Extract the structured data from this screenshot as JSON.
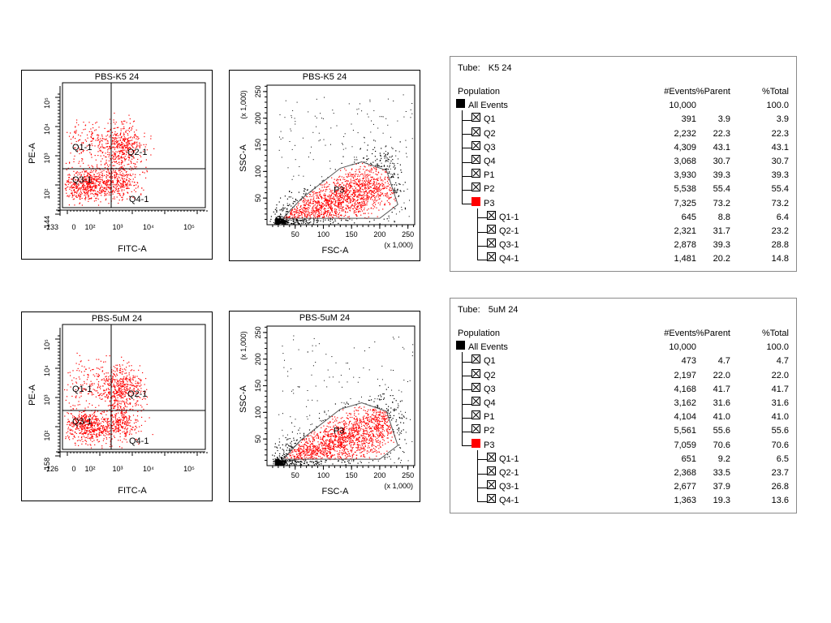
{
  "chart_data": [
    {
      "type": "scatter",
      "title": "PBS-K5 24",
      "xlabel": "FITC-A",
      "ylabel": "PE-A",
      "x_ticks": [
        "-133",
        "0",
        "10²",
        "10³",
        "10⁴",
        "10⁵"
      ],
      "y_ticks": [
        "-144",
        "10²",
        "10³",
        "10⁴",
        "10⁵"
      ],
      "gates": [
        "Q1-1",
        "Q2-1",
        "Q3-1",
        "Q4-1"
      ],
      "colors": {
        "points": "#ff0000"
      }
    },
    {
      "type": "scatter",
      "title": "PBS-K5 24",
      "xlabel": "FSC-A",
      "ylabel": "SSC-A",
      "x_unit": "(x 1,000)",
      "y_unit": "(x 1,000)",
      "x_ticks": [
        "50",
        "100",
        "150",
        "200",
        "250"
      ],
      "y_ticks": [
        "50",
        "100",
        "150",
        "200",
        "250"
      ],
      "xlim": [
        0,
        262
      ],
      "ylim": [
        0,
        262
      ],
      "gates": [
        "P3"
      ],
      "colors": {
        "in_gate": "#ff0000",
        "outside": "#000000"
      }
    },
    {
      "type": "scatter",
      "title": "PBS-5uM 24",
      "xlabel": "FITC-A",
      "ylabel": "PE-A",
      "x_ticks": [
        "-126",
        "0",
        "10²",
        "10³",
        "10⁴",
        "10⁵"
      ],
      "y_ticks": [
        "-158",
        "10²",
        "10³",
        "10⁴",
        "10⁵"
      ],
      "gates": [
        "Q1-1",
        "Q2-1",
        "Q3-1",
        "Q4-1"
      ],
      "colors": {
        "points": "#ff0000"
      }
    },
    {
      "type": "scatter",
      "title": "PBS-5uM 24",
      "xlabel": "FSC-A",
      "ylabel": "SSC-A",
      "x_unit": "(x 1,000)",
      "y_unit": "(x 1,000)",
      "x_ticks": [
        "50",
        "100",
        "150",
        "200",
        "250"
      ],
      "y_ticks": [
        "50",
        "100",
        "150",
        "200",
        "250"
      ],
      "xlim": [
        0,
        262
      ],
      "ylim": [
        0,
        262
      ],
      "gates": [
        "P3"
      ],
      "colors": {
        "in_gate": "#ff0000",
        "outside": "#000000"
      }
    },
    {
      "type": "table",
      "tube_label": "Tube:",
      "tube": "K5 24",
      "columns": [
        "Population",
        "#Events",
        "%Parent",
        "%Total"
      ],
      "rows": [
        {
          "name": "All Events",
          "events": "10,000",
          "parent": "",
          "total": "100.0"
        },
        {
          "name": "Q1",
          "events": "391",
          "parent": "3.9",
          "total": "3.9"
        },
        {
          "name": "Q2",
          "events": "2,232",
          "parent": "22.3",
          "total": "22.3"
        },
        {
          "name": "Q3",
          "events": "4,309",
          "parent": "43.1",
          "total": "43.1"
        },
        {
          "name": "Q4",
          "events": "3,068",
          "parent": "30.7",
          "total": "30.7"
        },
        {
          "name": "P1",
          "events": "3,930",
          "parent": "39.3",
          "total": "39.3"
        },
        {
          "name": "P2",
          "events": "5,538",
          "parent": "55.4",
          "total": "55.4"
        },
        {
          "name": "P3",
          "events": "7,325",
          "parent": "73.2",
          "total": "73.2"
        },
        {
          "name": "Q1-1",
          "events": "645",
          "parent": "8.8",
          "total": "6.4"
        },
        {
          "name": "Q2-1",
          "events": "2,321",
          "parent": "31.7",
          "total": "23.2"
        },
        {
          "name": "Q3-1",
          "events": "2,878",
          "parent": "39.3",
          "total": "28.8"
        },
        {
          "name": "Q4-1",
          "events": "1,481",
          "parent": "20.2",
          "total": "14.8"
        }
      ]
    },
    {
      "type": "table",
      "tube_label": "Tube:",
      "tube": "5uM 24",
      "columns": [
        "Population",
        "#Events",
        "%Parent",
        "%Total"
      ],
      "rows": [
        {
          "name": "All Events",
          "events": "10,000",
          "parent": "",
          "total": "100.0"
        },
        {
          "name": "Q1",
          "events": "473",
          "parent": "4.7",
          "total": "4.7"
        },
        {
          "name": "Q2",
          "events": "2,197",
          "parent": "22.0",
          "total": "22.0"
        },
        {
          "name": "Q3",
          "events": "4,168",
          "parent": "41.7",
          "total": "41.7"
        },
        {
          "name": "Q4",
          "events": "3,162",
          "parent": "31.6",
          "total": "31.6"
        },
        {
          "name": "P1",
          "events": "4,104",
          "parent": "41.0",
          "total": "41.0"
        },
        {
          "name": "P2",
          "events": "5,561",
          "parent": "55.6",
          "total": "55.6"
        },
        {
          "name": "P3",
          "events": "7,059",
          "parent": "70.6",
          "total": "70.6"
        },
        {
          "name": "Q1-1",
          "events": "651",
          "parent": "9.2",
          "total": "6.5"
        },
        {
          "name": "Q2-1",
          "events": "2,368",
          "parent": "33.5",
          "total": "23.7"
        },
        {
          "name": "Q3-1",
          "events": "2,677",
          "parent": "37.9",
          "total": "26.8"
        },
        {
          "name": "Q4-1",
          "events": "1,363",
          "parent": "19.3",
          "total": "13.6"
        }
      ]
    }
  ]
}
